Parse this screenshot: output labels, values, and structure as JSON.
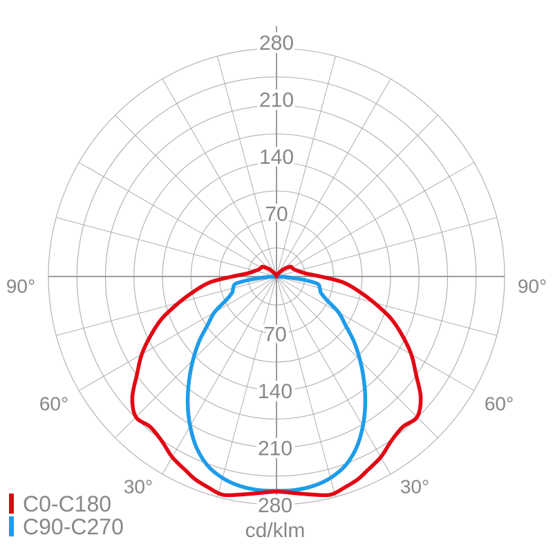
{
  "legend": {
    "items": [
      {
        "label": "C0-C180",
        "color": "#e30613"
      },
      {
        "label": "C90-C270",
        "color": "#1f9ce9"
      }
    ]
  },
  "chart_data": {
    "type": "polar",
    "subtype": "photometric-light-distribution",
    "unit_label": "cd/klm",
    "radial_ticks": [
      70,
      140,
      210,
      280
    ],
    "ring_step": 35,
    "r_max": 280,
    "spoke_step_deg": 15,
    "angle_label_values": [
      30,
      60,
      90
    ],
    "angle_labels": [
      "30°",
      "60°",
      "90°"
    ],
    "grid_color": "#adadad",
    "axis_color": "#9b9b9b",
    "label_color": "#878787",
    "series": [
      {
        "name": "C90-C270",
        "color": "#1f9ce9",
        "mirror": true,
        "gamma_deg": [
          0,
          5,
          10,
          15,
          20,
          25,
          30,
          35,
          40,
          45,
          50,
          55,
          60,
          65,
          70,
          75,
          80,
          83,
          85,
          87,
          90
        ],
        "values": [
          263,
          263,
          261,
          256,
          247,
          232,
          212,
          190,
          167,
          145,
          124,
          103,
          88,
          68,
          58,
          55,
          51,
          34,
          20,
          10,
          0
        ]
      },
      {
        "name": "C0-C180",
        "color": "#e30613",
        "mirror": true,
        "gamma_deg": [
          0,
          5,
          10,
          14,
          18,
          22,
          25,
          30,
          35,
          40,
          45,
          50,
          55,
          60,
          65,
          70,
          75,
          80,
          85,
          90,
          95,
          100,
          105,
          110,
          115,
          120,
          125,
          130,
          135,
          140,
          150,
          160,
          170,
          180
        ],
        "values": [
          264,
          267,
          272,
          276,
          272,
          268,
          263,
          256,
          246,
          241,
          244,
          231,
          209,
          191,
          170,
          149,
          124,
          102,
          82,
          54,
          38,
          31,
          27,
          24,
          22.5,
          21.8,
          21,
          17,
          13,
          9,
          4,
          2,
          1,
          0
        ]
      }
    ]
  }
}
